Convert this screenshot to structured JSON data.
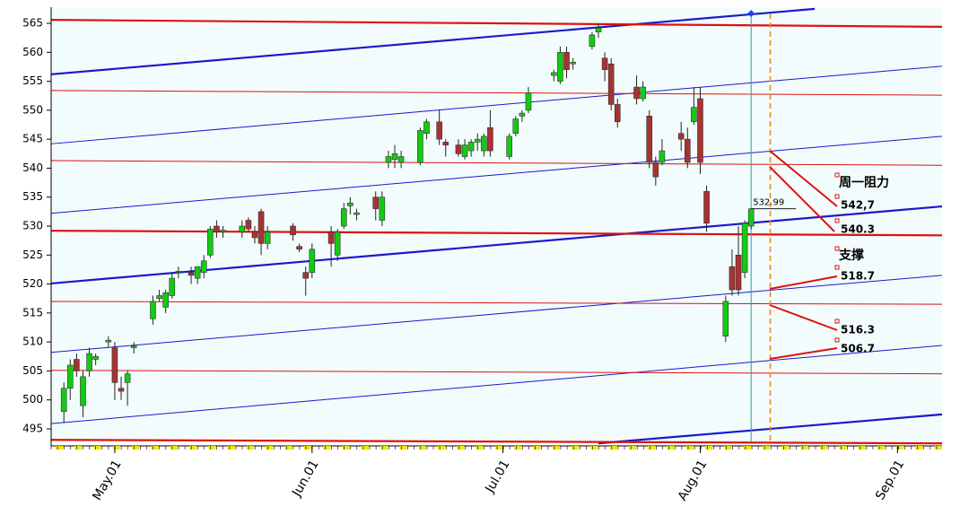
{
  "chart_data": {
    "type": "candlestick",
    "x": [
      "Apr.23",
      "Apr.24",
      "Apr.25",
      "Apr.26",
      "Apr.27",
      "Apr.28",
      "Apr.30",
      "May.01",
      "May.02",
      "May.03",
      "May.04",
      "May.07",
      "May.08",
      "May.09",
      "May.10",
      "May.11",
      "May.13",
      "May.14",
      "May.15",
      "May.16",
      "May.17",
      "May.18",
      "May.21",
      "May.22",
      "May.23",
      "May.24",
      "May.25",
      "May.29",
      "May.30",
      "May.31",
      "Jun.01",
      "Jun.04",
      "Jun.05",
      "Jun.06",
      "Jun.07",
      "Jun.08",
      "Jun.11",
      "Jun.12",
      "Jun.13",
      "Jun.14",
      "Jun.15",
      "Jun.18",
      "Jun.19",
      "Jun.21",
      "Jun.22",
      "Jun.24",
      "Jun.25",
      "Jun.26",
      "Jun.27",
      "Jun.28",
      "Jun.29",
      "Jul.02",
      "Jul.03",
      "Jul.04",
      "Jul.05",
      "Jul.09",
      "Jul.10",
      "Jul.11",
      "Jul.12",
      "Jul.15",
      "Jul.16",
      "Jul.17",
      "Jul.18",
      "Jul.19",
      "Jul.22",
      "Jul.23",
      "Jul.24",
      "Jul.25",
      "Jul.26",
      "Jul.29",
      "Jul.30",
      "Jul.31",
      "Aug.01",
      "Aug.02",
      "Aug.05",
      "Aug.06",
      "Aug.07",
      "Aug.08",
      "Aug.09"
    ],
    "open": [
      498,
      502,
      507,
      499,
      505,
      507,
      510,
      509,
      502,
      503,
      509,
      514,
      517.5,
      516,
      518,
      522,
      522,
      521,
      522,
      525,
      530,
      529,
      529,
      531,
      529,
      532.5,
      527,
      530,
      526.5,
      522,
      522,
      529,
      525,
      530,
      533.5,
      532,
      535,
      531,
      541,
      541.5,
      541,
      541,
      546,
      548,
      544.5,
      544,
      542,
      543,
      544.5,
      543,
      547,
      542,
      546,
      549,
      550,
      556,
      555,
      560,
      558,
      561,
      563.5,
      559,
      558,
      551,
      554,
      552,
      549,
      541,
      541,
      546,
      545,
      548,
      552,
      536,
      511,
      523,
      525,
      522,
      530
    ],
    "high": [
      503,
      507,
      508,
      505,
      509,
      508,
      511,
      510,
      504,
      505,
      510,
      518,
      519,
      519,
      522,
      523,
      523,
      523,
      525,
      530,
      531,
      530,
      531,
      531.5,
      530,
      533,
      530,
      530.5,
      527,
      523,
      527,
      530,
      529.5,
      534,
      535,
      533,
      536,
      536,
      543,
      544,
      543,
      547,
      548.5,
      550,
      545,
      545,
      545,
      545,
      546,
      546,
      550,
      546,
      549,
      550,
      554,
      557,
      561,
      561,
      559,
      563.5,
      565,
      560,
      559,
      552,
      556,
      555,
      550,
      542,
      545,
      548,
      547,
      554,
      554,
      537,
      518,
      526,
      530,
      531,
      533
    ],
    "low": [
      496,
      500,
      504,
      497,
      504,
      506,
      509,
      500,
      500,
      499,
      508,
      513,
      517,
      515,
      517.5,
      521,
      520,
      520,
      521,
      524.5,
      528,
      528,
      528,
      529,
      527,
      525,
      526,
      527.5,
      525.5,
      518,
      521,
      523,
      524,
      529.5,
      532,
      531,
      531,
      530,
      540,
      540,
      540,
      540.5,
      545,
      544,
      542,
      542,
      541.5,
      542,
      543,
      542,
      542,
      541.5,
      545.5,
      548,
      549.5,
      555,
      554.5,
      555.5,
      557,
      560.5,
      562.5,
      555,
      550,
      547,
      551,
      551.5,
      540,
      537,
      540.5,
      543,
      540,
      547.5,
      539,
      529,
      510,
      518,
      518,
      521,
      529.5
    ],
    "close": [
      502,
      506,
      505,
      504,
      508,
      507.5,
      510.3,
      503,
      501.5,
      504.5,
      509.3,
      517,
      518,
      518.5,
      521,
      522.2,
      521.5,
      523,
      524,
      529.5,
      529,
      529.3,
      530,
      529.5,
      528,
      527,
      529,
      528.5,
      526,
      521,
      526,
      527,
      529,
      533,
      534,
      532.3,
      533,
      535,
      542,
      542.5,
      542,
      546.5,
      548,
      545,
      544,
      542.5,
      544,
      544.5,
      545,
      545.5,
      543,
      545.5,
      548.5,
      549.5,
      553,
      556.5,
      560,
      557,
      558.3,
      563,
      564.2,
      557,
      551,
      548,
      552,
      554,
      541,
      538.5,
      543,
      545,
      541,
      550.5,
      541,
      530.5,
      517,
      519,
      519,
      530.5,
      532.99
    ],
    "up_color": "#11cc11",
    "down_color": "#a83232",
    "xlim": [
      "Apr.21",
      "Sep.08"
    ],
    "xticks": [
      "May.01",
      "Jun.01",
      "Jul.01",
      "Aug.01",
      "Sep.01"
    ],
    "ylim": [
      492.83,
      567.48
    ],
    "yticks": [
      495,
      500,
      505,
      510,
      515,
      520,
      525,
      530,
      535,
      540,
      545,
      550,
      555,
      560,
      565
    ],
    "trend_lines": [
      {
        "x": [
          "Apr.21",
          "Aug.19"
        ],
        "values": [
          556.2,
          567.5
        ],
        "color": "#1a1acc",
        "style": "thick"
      },
      {
        "x": [
          "Apr.21",
          "Sep.08"
        ],
        "values": [
          544.2,
          557.6
        ],
        "color": "#1a1acc",
        "style": "thin"
      },
      {
        "x": [
          "Apr.21",
          "Sep.08"
        ],
        "values": [
          532.2,
          545.5
        ],
        "color": "#1a1acc",
        "style": "thin"
      },
      {
        "x": [
          "Apr.21",
          "Sep.08"
        ],
        "values": [
          520.1,
          533.4
        ],
        "color": "#1a1acc",
        "style": "thick"
      },
      {
        "x": [
          "Apr.21",
          "Sep.08"
        ],
        "values": [
          508.2,
          521.5
        ],
        "color": "#1a1acc",
        "style": "thin"
      },
      {
        "x": [
          "Apr.21",
          "Sep.08"
        ],
        "values": [
          495.9,
          509.4
        ],
        "color": "#1a1acc",
        "style": "thin"
      },
      {
        "x": [
          "Jul.16",
          "Sep.08"
        ],
        "values": [
          492.5,
          497.5
        ],
        "color": "#1a1acc",
        "style": "thick"
      },
      {
        "x": [
          "Apr.21",
          "Sep.08"
        ],
        "values": [
          565.6,
          564.4
        ],
        "color": "#dd1111",
        "style": "thick"
      },
      {
        "x": [
          "Apr.21",
          "Sep.08"
        ],
        "values": [
          553.4,
          552.6
        ],
        "color": "#dd1111",
        "style": "thin"
      },
      {
        "x": [
          "Apr.21",
          "Sep.08"
        ],
        "values": [
          541.3,
          540.5
        ],
        "color": "#dd1111",
        "style": "thin"
      },
      {
        "x": [
          "Apr.21",
          "Sep.08"
        ],
        "values": [
          529.2,
          528.4
        ],
        "color": "#dd1111",
        "style": "thick"
      },
      {
        "x": [
          "Apr.21",
          "Sep.08"
        ],
        "values": [
          517.0,
          516.5
        ],
        "color": "#dd1111",
        "style": "thin"
      },
      {
        "x": [
          "Apr.21",
          "Sep.08"
        ],
        "values": [
          505.1,
          504.5
        ],
        "color": "#dd1111",
        "style": "thin"
      },
      {
        "x": [
          "Apr.21",
          "Sep.08"
        ],
        "values": [
          493.1,
          492.5
        ],
        "color": "#dd1111",
        "style": "thick"
      }
    ],
    "vertical_lines": [
      {
        "x": "Aug.09",
        "color": "#2aa0a0",
        "dashed": false
      },
      {
        "x": "Aug.12",
        "color": "#f08a1a",
        "dashed": true
      }
    ],
    "marker": {
      "x": "Aug.09",
      "value": 566.7,
      "color": "#2244ee"
    },
    "annotations": [
      "周一阻力",
      "542,7",
      "540.3",
      "支撑",
      "518.7",
      "516.3",
      "506.7"
    ]
  }
}
